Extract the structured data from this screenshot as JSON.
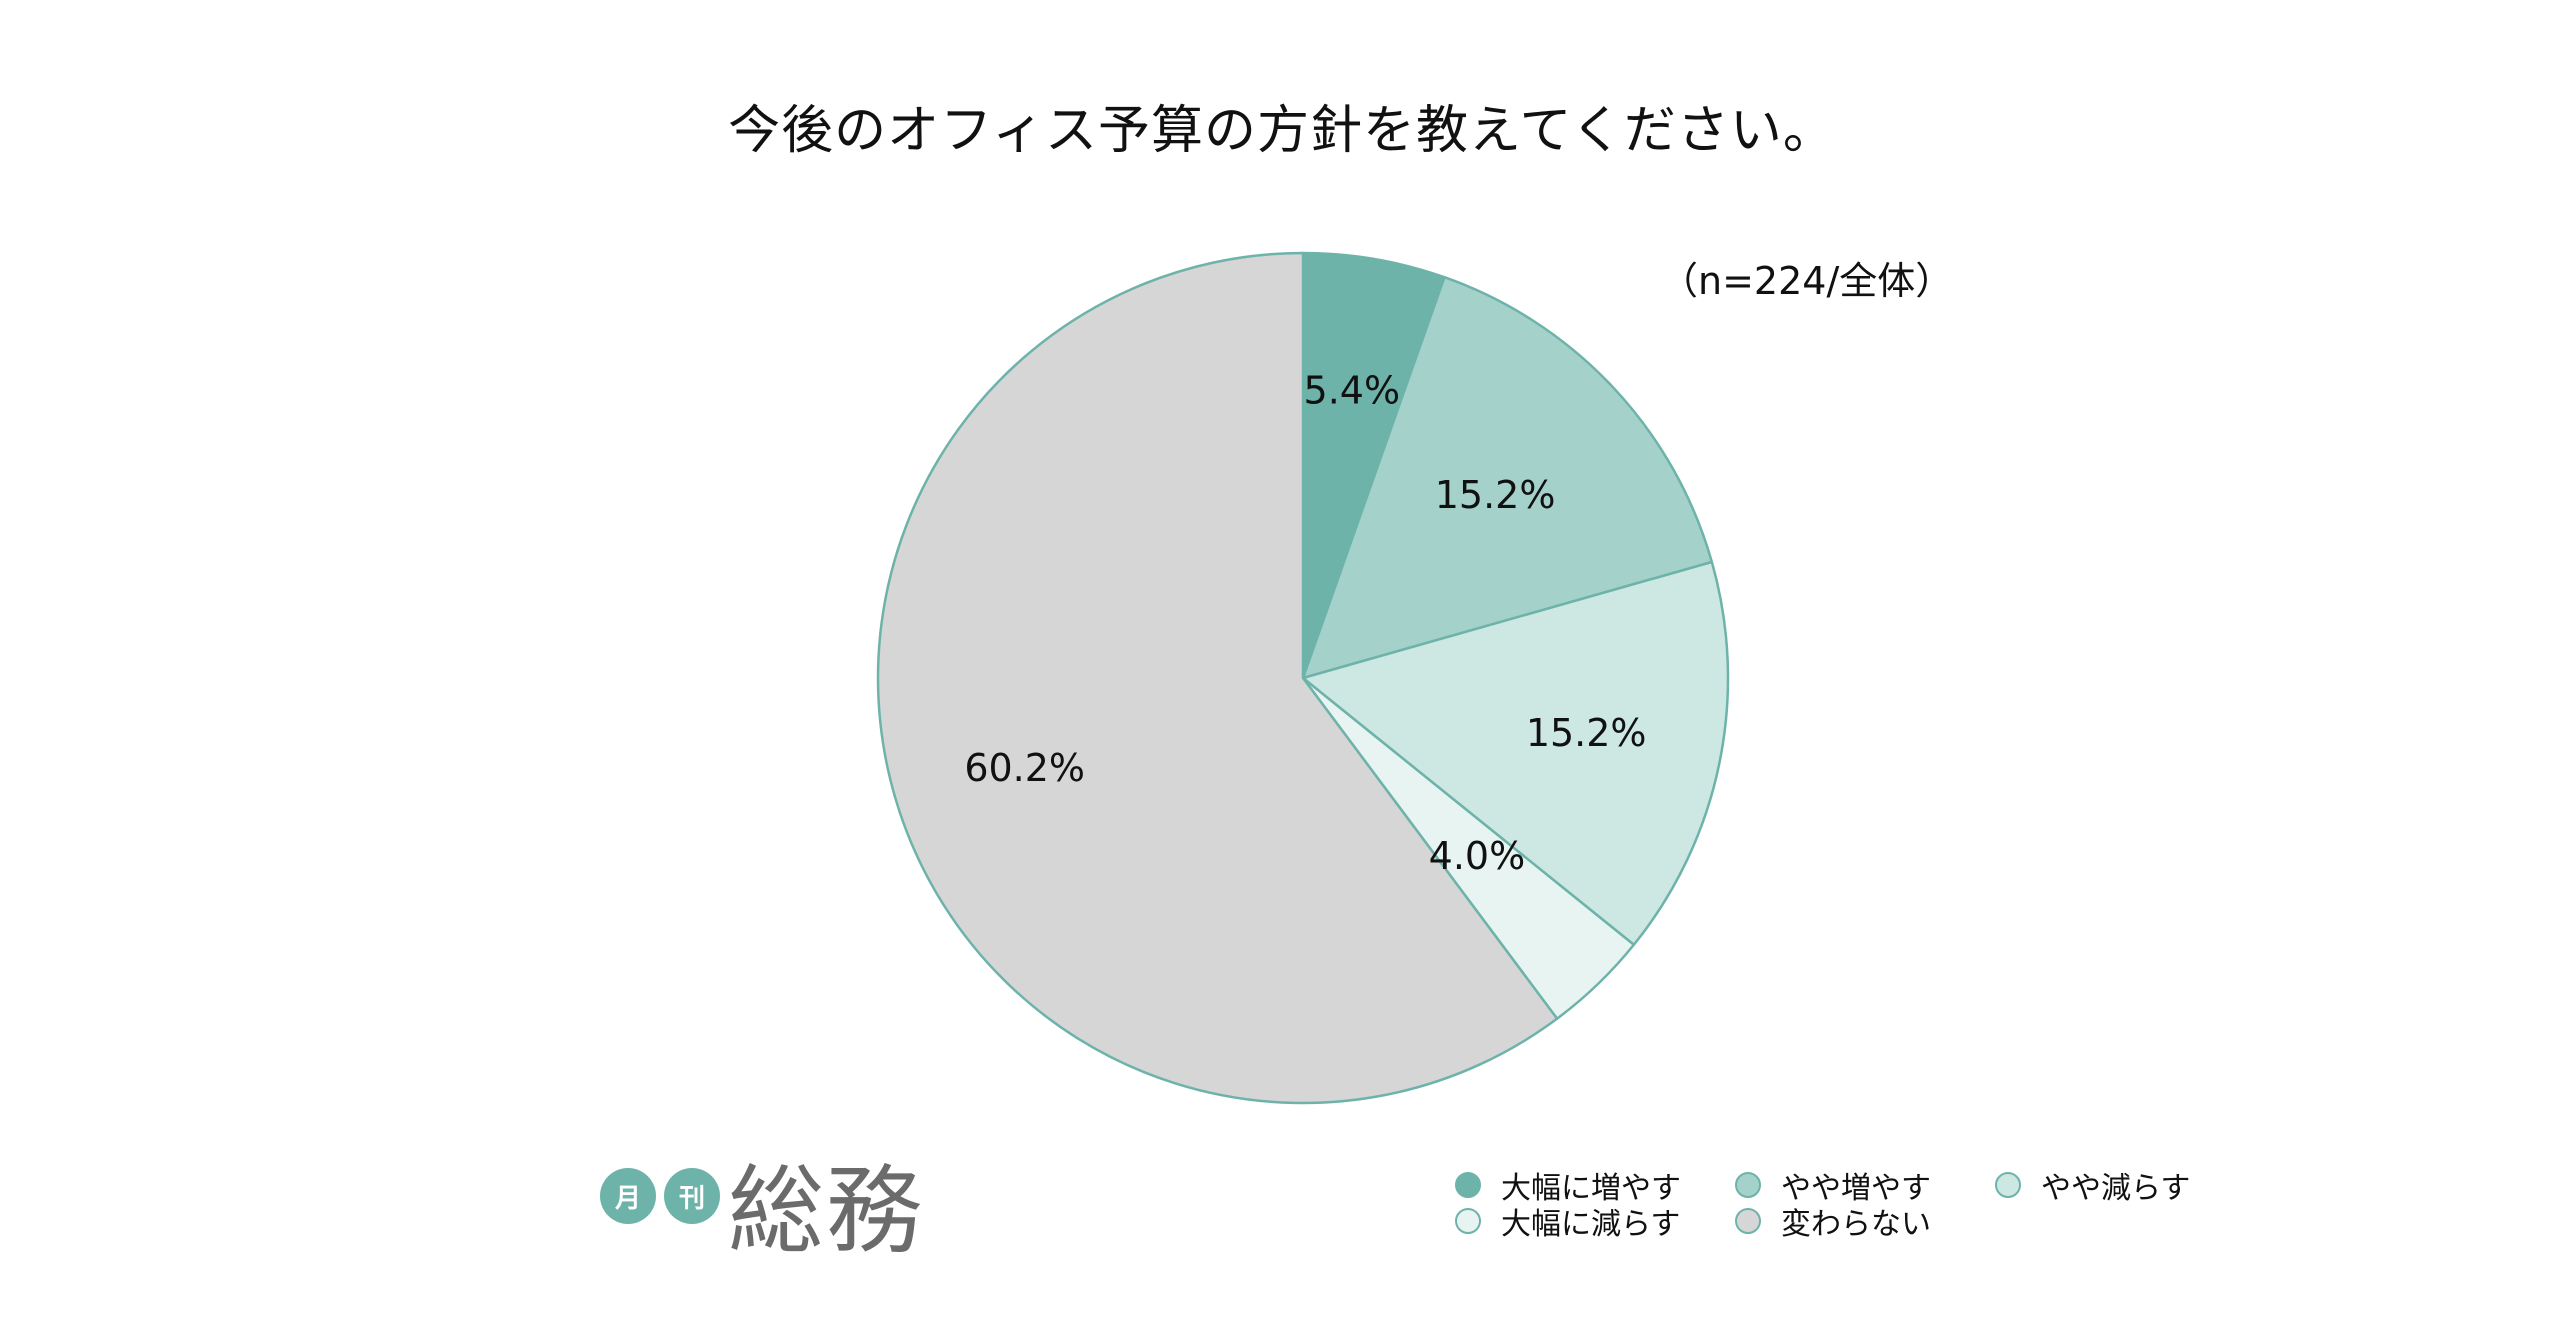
{
  "chart_data": {
    "type": "pie",
    "title": "今後のオフィス予算の方針を教えてください。",
    "note": "（n=224/全体）",
    "start_angle": "12 o'clock",
    "direction": "clockwise",
    "slices": [
      {
        "name": "大幅に増やす",
        "value": 5.4,
        "label": "5.4%",
        "color": "#6db3aa"
      },
      {
        "name": "やや増やす",
        "value": 15.2,
        "label": "15.2%",
        "color": "#a5d1cb"
      },
      {
        "name": "やや減らす",
        "value": 15.2,
        "label": "15.2%",
        "color": "#cde7e3"
      },
      {
        "name": "大幅に減らす",
        "value": 4.0,
        "label": "4.0%",
        "color": "#e8f4f2"
      },
      {
        "name": "変わらない",
        "value": 60.2,
        "label": "60.2%",
        "color": "#d6d6d6"
      }
    ],
    "slice_border_color": "#6db3aa",
    "legend_position": "bottom-right",
    "legend_order": [
      "大幅に増やす",
      "やや増やす",
      "やや減らす",
      "大幅に減らす",
      "変わらない"
    ]
  },
  "logo": {
    "badge_1": "月",
    "badge_2": "刊",
    "main": "総務"
  }
}
